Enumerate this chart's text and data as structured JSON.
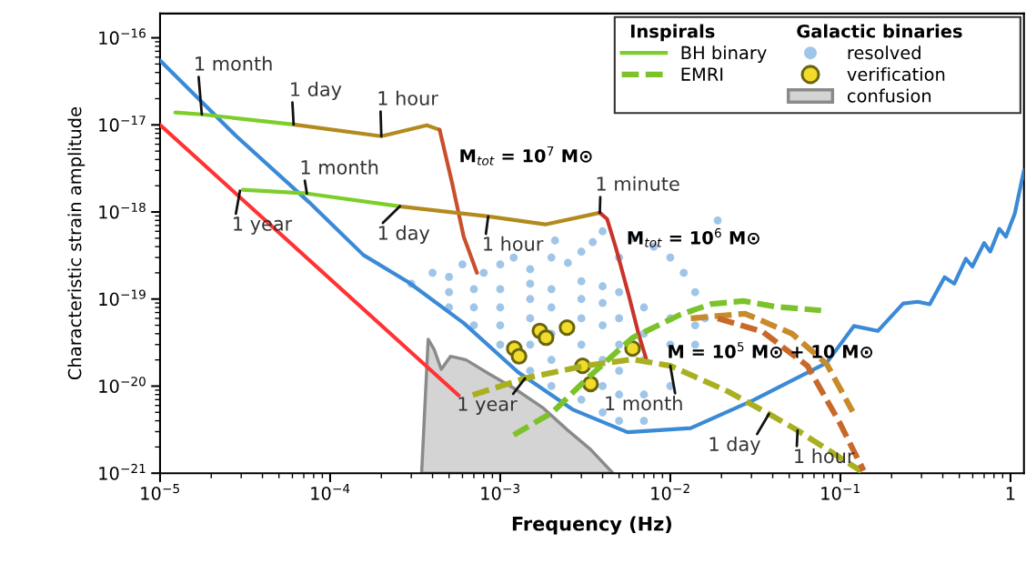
{
  "chart_data": {
    "type": "line",
    "xlabel": "Frequency (Hz)",
    "ylabel": "Characteristic strain amplitude",
    "log": "xy",
    "grid": false,
    "legend": "top right",
    "xlim": [
      1e-05,
      1.2
    ],
    "ylim": [
      1e-21,
      1.9e-16
    ],
    "xticks": [
      {
        "value": 1e-05,
        "label": "10$^{−5}$"
      },
      {
        "value": 0.0001,
        "label": "10$^{−4}$"
      },
      {
        "value": 0.001,
        "label": "10$^{−3}$"
      },
      {
        "value": 0.01,
        "label": "10$^{−2}$"
      },
      {
        "value": 0.1,
        "label": "10$^{−1}$"
      },
      1
    ],
    "yticks": [
      {
        "value": 1e-21,
        "label": "10$^{−21}$"
      },
      {
        "value": 1e-20,
        "label": "10$^{−20}$"
      },
      {
        "value": 1e-19,
        "label": "10$^{−19}$"
      },
      {
        "value": 1e-18,
        "label": "10$^{−18}$"
      },
      {
        "value": 1e-17,
        "label": "10$^{−17}$"
      },
      {
        "value": 1e-16,
        "label": "10$^{−16}$"
      }
    ],
    "series": [
      {
        "type": "area",
        "name": "confusion",
        "color": "#d4d4d4",
        "x": [
          0.000345,
          0.000377,
          0.00041,
          0.00045,
          0.00051,
          0.00063,
          0.00086,
          0.00121,
          0.00177,
          0.0025,
          0.0034,
          0.0046
        ],
        "values": [
          1e-21,
          3.45e-20,
          2.6e-20,
          1.56e-20,
          2.2e-20,
          2e-20,
          1.38e-20,
          9.4e-21,
          5.7e-21,
          3.1e-21,
          1.87e-21,
          1e-21
        ]
      },
      {
        "type": "scatter",
        "name": "resolved",
        "color": "#9fc5e8",
        "marker": "circle",
        "x": [
          0.0003,
          0.0004,
          0.0005,
          0.0006,
          0.0008,
          0.001,
          0.0012,
          0.0015,
          0.002,
          0.0025,
          0.003,
          0.0035,
          0.004,
          0.005,
          0.006,
          0.008,
          0.01,
          0.012,
          0.014,
          0.016,
          0.0021,
          0.019,
          0.0005,
          0.0005,
          0.0007,
          0.0007,
          0.0007,
          0.001,
          0.001,
          0.001,
          0.001,
          0.0015,
          0.0015,
          0.0015,
          0.0015,
          0.0015,
          0.002,
          0.002,
          0.002,
          0.002,
          0.002,
          0.003,
          0.003,
          0.003,
          0.003,
          0.003,
          0.004,
          0.004,
          0.004,
          0.004,
          0.004,
          0.004,
          0.005,
          0.005,
          0.005,
          0.005,
          0.005,
          0.005,
          0.007,
          0.007,
          0.007,
          0.007,
          0.007,
          0.01,
          0.01,
          0.01,
          0.014,
          0.014
        ],
        "values": [
          1.5e-19,
          2e-19,
          1.8e-19,
          2.5e-19,
          2e-19,
          2.5e-19,
          3e-19,
          2.2e-19,
          3e-19,
          2.6e-19,
          3.5e-19,
          4.5e-19,
          6e-19,
          3e-19,
          5e-19,
          4e-19,
          3e-19,
          2e-19,
          1.2e-19,
          6e-20,
          4.7e-19,
          8e-19,
          8e-20,
          1.2e-19,
          5e-20,
          8e-20,
          1.3e-19,
          3e-20,
          5e-20,
          8e-20,
          1.3e-19,
          1.5e-20,
          3e-20,
          6e-20,
          1e-19,
          1.5e-19,
          1e-20,
          2e-20,
          4e-20,
          8e-20,
          1.3e-19,
          7e-21,
          3e-20,
          6e-20,
          1e-19,
          1.6e-19,
          5e-21,
          1e-20,
          2e-20,
          5e-20,
          9e-20,
          1.4e-19,
          4e-21,
          8e-21,
          1.5e-20,
          3e-20,
          6e-20,
          1.2e-19,
          4e-21,
          8e-21,
          2e-20,
          4e-20,
          8e-20,
          1e-20,
          3e-20,
          6e-20,
          3e-20,
          5e-20
        ]
      },
      {
        "color": "#3b8ad6",
        "line_style": "solid",
        "x": [
          1e-05,
          2.81e-05,
          7.5e-05,
          0.000157,
          0.00029,
          0.00061,
          0.00127,
          0.00266,
          0.0056,
          0.0132,
          0.0308,
          0.083,
          0.12,
          0.166,
          0.234,
          0.285,
          0.335,
          0.41,
          0.467,
          0.547,
          0.597,
          0.7,
          0.76,
          0.86,
          0.94,
          1.06,
          1.2
        ],
        "values": [
          5.5e-17,
          7.4e-18,
          1.3e-18,
          3.2e-19,
          1.55e-19,
          5.3e-20,
          1.45e-20,
          5.4e-21,
          2.96e-21,
          3.3e-21,
          6.9e-21,
          1.85e-20,
          4.9e-20,
          4.3e-20,
          8.9e-20,
          9.3e-20,
          8.7e-20,
          1.78e-19,
          1.5e-19,
          2.9e-19,
          2.36e-19,
          4.4e-19,
          3.5e-19,
          6.4e-19,
          5.2e-19,
          9.6e-19,
          3e-18
        ]
      },
      {
        "color": "#a8b020",
        "line_style": "dashed",
        "x": [
          0.00069,
          0.0014,
          0.00313,
          0.006,
          0.01,
          0.0218,
          0.038,
          0.056,
          0.133
        ],
        "values": [
          7.9e-21,
          1.23e-20,
          1.71e-20,
          2.03e-20,
          1.71e-20,
          8.7e-21,
          4.8e-21,
          3.1e-21,
          1.05e-21
        ]
      },
      {
        "color": "#c88a2a",
        "line_style": "dashed",
        "x": [
          0.0132,
          0.0275,
          0.052,
          0.083,
          0.118
        ],
        "values": [
          6e-20,
          6.8e-20,
          4e-20,
          1.8e-20,
          5.1e-21
        ]
      },
      {
        "color": "#c8692a",
        "line_style": "dashed",
        "x": [
          0.019,
          0.035,
          0.064,
          0.099,
          0.137
        ],
        "values": [
          6e-20,
          4.2e-20,
          1.71e-20,
          3.8e-21,
          1.07e-21
        ]
      },
      {
        "name": "EMRI",
        "color": "#7cc22a",
        "line_style": "dashed",
        "x": [
          0.0012,
          0.00203,
          0.00324,
          0.006,
          0.0114,
          0.0175,
          0.0269,
          0.041,
          0.077
        ],
        "values": [
          2.75e-21,
          5e-21,
          1.22e-20,
          3.6e-20,
          6.6e-20,
          8.8e-20,
          9.5e-20,
          8.2e-20,
          7.4e-20
        ]
      },
      {
        "name": "BH binary",
        "color": "#7ccf2a",
        "line_style": "solid",
        "x": [
          1.23e-05,
          1.76e-05,
          6.1e-05
        ],
        "values": [
          1.39e-17,
          1.32e-17,
          1.01e-17
        ]
      },
      {
        "color": "#b28a1e",
        "line_style": "solid",
        "x": [
          6.1e-05,
          0.0002,
          0.00037,
          0.00044
        ],
        "values": [
          1.01e-17,
          7.4e-18,
          9.9e-18,
          8.8e-18
        ]
      },
      {
        "color": "#c8502a",
        "line_style": "solid",
        "x": [
          0.00044,
          0.00052,
          0.00061,
          0.00073
        ],
        "values": [
          8.8e-18,
          2.2e-18,
          5.2e-19,
          2e-19
        ]
      },
      {
        "color": "#7ccf2a",
        "line_style": "solid",
        "x": [
          3.06e-05,
          7.3e-05,
          0.000257
        ],
        "values": [
          1.8e-18,
          1.63e-18,
          1.16e-18
        ]
      },
      {
        "color": "#b28a1e",
        "line_style": "solid",
        "x": [
          0.000257,
          0.00085,
          0.00184,
          0.00385
        ],
        "values": [
          1.16e-18,
          8.9e-19,
          7.2e-19,
          9.8e-19
        ]
      },
      {
        "color": "#c8342a",
        "line_style": "solid",
        "x": [
          0.00385,
          0.00425,
          0.0048,
          0.0057,
          0.0065,
          0.0072
        ],
        "values": [
          9.8e-19,
          8.3e-19,
          3.8e-19,
          1.1e-19,
          4e-20,
          2.08e-20
        ]
      },
      {
        "type": "scatter",
        "name": "verification",
        "color": "#f2dc2a",
        "marker": "circle",
        "x": [
          0.00121,
          0.00129,
          0.00171,
          0.00186,
          0.00247,
          0.00305,
          0.0034,
          0.006
        ],
        "values": [
          2.7e-20,
          2.2e-20,
          4.3e-20,
          3.6e-20,
          4.7e-20,
          1.71e-20,
          1.06e-20,
          2.7e-20
        ]
      },
      {
        "color": "#ff3333",
        "line_style": "solid",
        "x": [
          1e-05,
          0.00057
        ],
        "values": [
          1e-17,
          7.8e-21
        ]
      }
    ],
    "annotations": [
      "Inspirals",
      "Galactic binaries",
      {
        "text": "1 month",
        "x": 1.76e-05,
        "y": 1.32e-17
      },
      {
        "text": "1 day",
        "x": 6.1e-05,
        "y": 1.01e-17
      },
      {
        "text": "1 hour",
        "x": 0.0002,
        "y": 7.4e-18
      },
      {
        "text": "1 year",
        "x": 2.95e-05,
        "y": 1.75e-18
      },
      {
        "text": "1 month",
        "x": 7.3e-05,
        "y": 1.63e-18
      },
      {
        "text": "1 day",
        "x": 0.000257,
        "y": 1.16e-18
      },
      {
        "text": "1 hour",
        "x": 0.00085,
        "y": 8.9e-19
      },
      {
        "text": "1 minute",
        "x": 0.00385,
        "y": 9.8e-19
      },
      {
        "text": "1 year",
        "x": 0.0014,
        "y": 1.23e-20
      },
      {
        "text": "1 month",
        "x": 0.01,
        "y": 1.71e-20
      },
      {
        "text": "1 day",
        "x": 0.038,
        "y": 4.8e-21
      },
      {
        "text": "1 hour",
        "x": 0.056,
        "y": 3.1e-21
      },
      "M$_{tot}$ = 10$^{7}$ M⊙",
      "M$_{tot}$ = 10$^{6}$ M⊙",
      "M = 10$^{5}$ M⊙ + 10 M⊙"
    ]
  }
}
